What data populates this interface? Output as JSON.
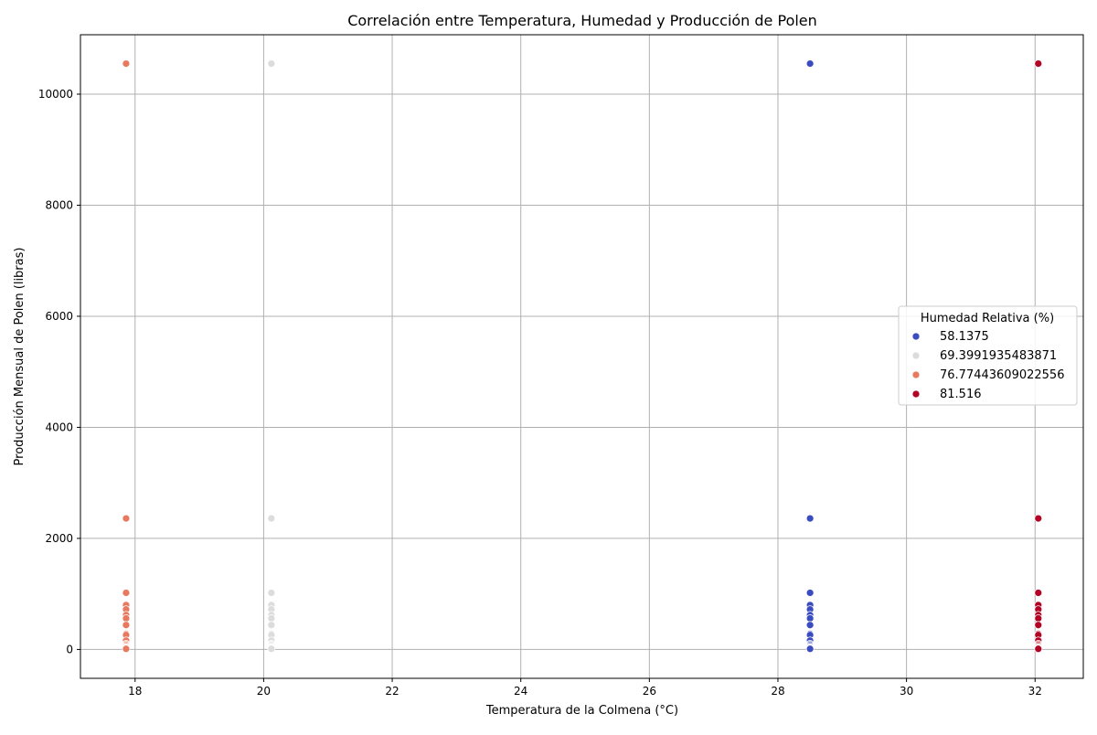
{
  "chart_data": {
    "type": "scatter",
    "title": "Correlación entre Temperatura, Humedad y Producción de Polen",
    "xlabel": "Temperatura de la Colmena (°C)",
    "ylabel": "Producción Mensual de Polen (libras)",
    "xlim": [
      17.15,
      32.75
    ],
    "ylim": [
      -520,
      11070
    ],
    "xticks": [
      18,
      20,
      22,
      24,
      26,
      28,
      30,
      32
    ],
    "yticks": [
      0,
      2000,
      4000,
      6000,
      8000,
      10000
    ],
    "grid": true,
    "legend": {
      "title": "Humedad Relativa (%)",
      "placement": "center-right"
    },
    "series": [
      {
        "name": "58.1375",
        "color": "#3b4cc0",
        "x": [
          28.5,
          28.5,
          28.5,
          28.5,
          28.5,
          28.5,
          28.5,
          28.5,
          28.5,
          28.5,
          28.5,
          28.5,
          28.5,
          28.5,
          28.5,
          28.5,
          28.5,
          28.5
        ],
        "y": [
          10550,
          2360,
          1020,
          800,
          720,
          620,
          560,
          440,
          280,
          260,
          160,
          100,
          80,
          60,
          40,
          30,
          20,
          10
        ]
      },
      {
        "name": "69.3991935483871",
        "color": "#dddcdc",
        "x": [
          20.12,
          20.12,
          20.12,
          20.12,
          20.12,
          20.12,
          20.12,
          20.12,
          20.12,
          20.12,
          20.12,
          20.12,
          20.12,
          20.12,
          20.12,
          20.12,
          20.12,
          20.12
        ],
        "y": [
          10550,
          2360,
          1020,
          800,
          720,
          620,
          560,
          440,
          280,
          260,
          160,
          100,
          80,
          60,
          40,
          30,
          20,
          10
        ]
      },
      {
        "name": "76.77443609022556",
        "color": "#e7795f",
        "x": [
          17.86,
          17.86,
          17.86,
          17.86,
          17.86,
          17.86,
          17.86,
          17.86,
          17.86,
          17.86,
          17.86,
          17.86,
          17.86,
          17.86,
          17.86,
          17.86,
          17.86,
          17.86
        ],
        "y": [
          10550,
          2360,
          1020,
          800,
          720,
          620,
          560,
          440,
          280,
          260,
          160,
          100,
          80,
          60,
          40,
          30,
          20,
          10
        ]
      },
      {
        "name": "81.516",
        "color": "#b40426",
        "x": [
          32.05,
          32.05,
          32.05,
          32.05,
          32.05,
          32.05,
          32.05,
          32.05,
          32.05,
          32.05,
          32.05,
          32.05,
          32.05,
          32.05,
          32.05,
          32.05,
          32.05,
          32.05
        ],
        "y": [
          10550,
          2360,
          1020,
          800,
          720,
          620,
          560,
          440,
          280,
          260,
          160,
          100,
          80,
          60,
          40,
          30,
          20,
          10
        ]
      }
    ]
  }
}
